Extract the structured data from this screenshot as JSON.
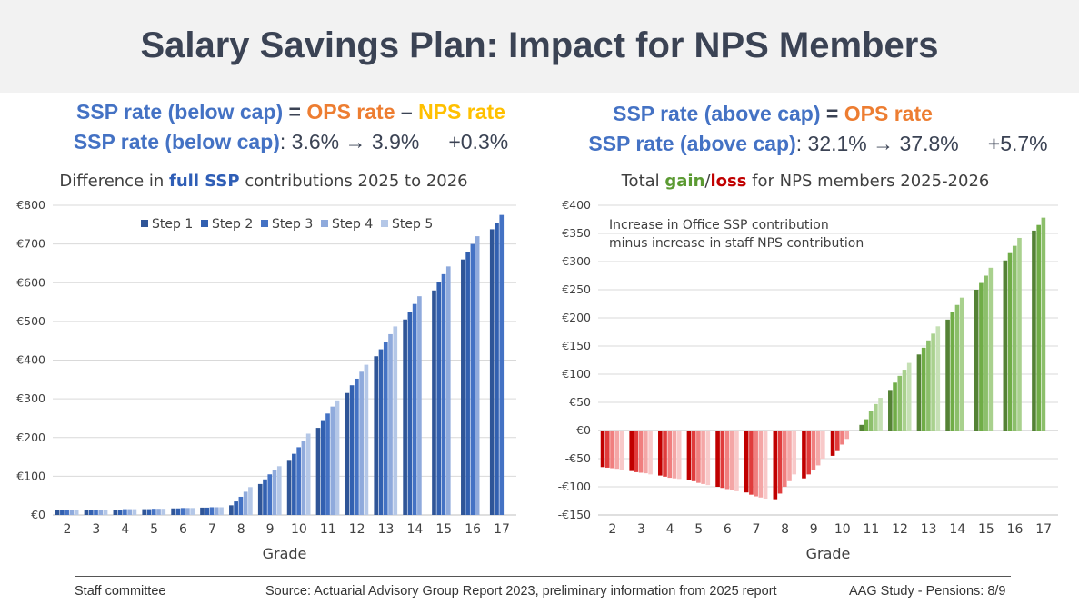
{
  "title": "Salary Savings Plan: Impact for NPS Members",
  "left_formula": {
    "line1": {
      "a": "SSP rate (below cap)",
      "eq": " = ",
      "b": "OPS rate",
      "op": " – ",
      "c": "NPS rate"
    },
    "line2": {
      "a": "SSP rate (below cap)",
      "rest": ": 3.6% → 3.9%",
      "delta": "+0.3%"
    }
  },
  "right_formula": {
    "line1": {
      "a": "SSP rate (above cap)",
      "eq": " = ",
      "b": "OPS rate"
    },
    "line2": {
      "a": "SSP rate (above cap)",
      "rest": ": 32.1% → 37.8%",
      "delta": "+5.7%"
    }
  },
  "left_chart_title": {
    "pre": "Difference in ",
    "bold": "full SSP",
    "post": " contributions 2025 to 2026"
  },
  "right_chart_title": {
    "pre": "Total ",
    "gain": "gain",
    "slash": "/",
    "loss": "loss",
    "post": " for NPS members 2025-2026"
  },
  "chart_data": [
    {
      "type": "bar",
      "categories": [
        "2",
        "3",
        "4",
        "5",
        "6",
        "7",
        "8",
        "9",
        "10",
        "11",
        "12",
        "13",
        "14",
        "15",
        "16",
        "17"
      ],
      "xlabel": "Grade",
      "ylabel": "",
      "ylim": [
        0,
        800
      ],
      "yticks": [
        0,
        100,
        200,
        300,
        400,
        500,
        600,
        700,
        800
      ],
      "ytick_labels": [
        "€0",
        "€100",
        "€200",
        "€300",
        "€400",
        "€500",
        "€600",
        "€700",
        "€800"
      ],
      "grid": true,
      "legend": "top-center",
      "series": [
        {
          "name": "Step 1",
          "color": "#2f5597",
          "values": [
            12,
            13,
            14,
            15,
            17,
            19,
            25,
            80,
            140,
            225,
            315,
            410,
            505,
            580,
            660,
            738
          ]
        },
        {
          "name": "Step 2",
          "color": "#3260b0",
          "values": [
            12,
            13,
            14,
            15,
            17,
            19,
            35,
            92,
            158,
            245,
            335,
            428,
            525,
            602,
            680,
            755
          ]
        },
        {
          "name": "Step 3",
          "color": "#4472c4",
          "values": [
            13,
            14,
            15,
            16,
            18,
            20,
            47,
            105,
            175,
            262,
            352,
            447,
            545,
            622,
            700,
            775
          ]
        },
        {
          "name": "Step 4",
          "color": "#8faadc",
          "values": [
            13,
            14,
            15,
            16,
            18,
            20,
            60,
            116,
            192,
            280,
            370,
            467,
            565,
            642,
            720,
            null
          ]
        },
        {
          "name": "Step 5",
          "color": "#b4c7e7",
          "values": [
            13,
            14,
            15,
            16,
            18,
            20,
            72,
            126,
            210,
            296,
            388,
            487,
            null,
            null,
            null,
            null
          ]
        }
      ]
    },
    {
      "type": "bar",
      "categories": [
        "2",
        "3",
        "4",
        "5",
        "6",
        "7",
        "8",
        "9",
        "10",
        "11",
        "12",
        "13",
        "14",
        "15",
        "16",
        "17"
      ],
      "xlabel": "Grade",
      "ylabel": "",
      "ylim": [
        -150,
        400
      ],
      "yticks": [
        -150,
        -100,
        -50,
        0,
        50,
        100,
        150,
        200,
        250,
        300,
        350,
        400
      ],
      "ytick_labels": [
        "-€150",
        "-€100",
        "-€50",
        "€0",
        "€50",
        "€100",
        "€150",
        "€200",
        "€250",
        "€300",
        "€350",
        "€400"
      ],
      "grid": true,
      "annotation": [
        "Increase in Office SSP contribution",
        "minus increase in staff NPS contribution"
      ],
      "positive_colors": [
        "#548235",
        "#70ad47",
        "#8cbf6b",
        "#a9d18e",
        "#c5e0b4"
      ],
      "negative_colors": [
        "#c00000",
        "#e03c3c",
        "#f07f7f",
        "#f4a6a6",
        "#f8c9c9"
      ],
      "series": [
        {
          "name": "Step 1",
          "values": [
            -65,
            -72,
            -80,
            -88,
            -100,
            -110,
            -122,
            -85,
            -45,
            10,
            72,
            135,
            197,
            250,
            302,
            355
          ]
        },
        {
          "name": "Step 2",
          "values": [
            -66,
            -74,
            -82,
            -90,
            -102,
            -114,
            -112,
            -78,
            -35,
            20,
            85,
            147,
            210,
            262,
            315,
            365
          ]
        },
        {
          "name": "Step 3",
          "values": [
            -67,
            -75,
            -84,
            -93,
            -104,
            -117,
            -100,
            -70,
            -25,
            35,
            97,
            160,
            223,
            275,
            328,
            378
          ]
        },
        {
          "name": "Step 4",
          "values": [
            -68,
            -76,
            -85,
            -95,
            -106,
            -119,
            -90,
            -62,
            -15,
            47,
            108,
            172,
            236,
            289,
            342,
            null
          ]
        },
        {
          "name": "Step 5",
          "values": [
            -70,
            -78,
            -86,
            -97,
            -108,
            -121,
            -78,
            -50,
            null,
            58,
            120,
            185,
            null,
            null,
            null,
            null
          ]
        }
      ]
    }
  ],
  "footer": {
    "left": "Staff committee",
    "center": "Source: Actuarial Advisory Group Report 2023, preliminary information from 2025 report",
    "right": "AAG Study - Pensions: 8/9"
  }
}
